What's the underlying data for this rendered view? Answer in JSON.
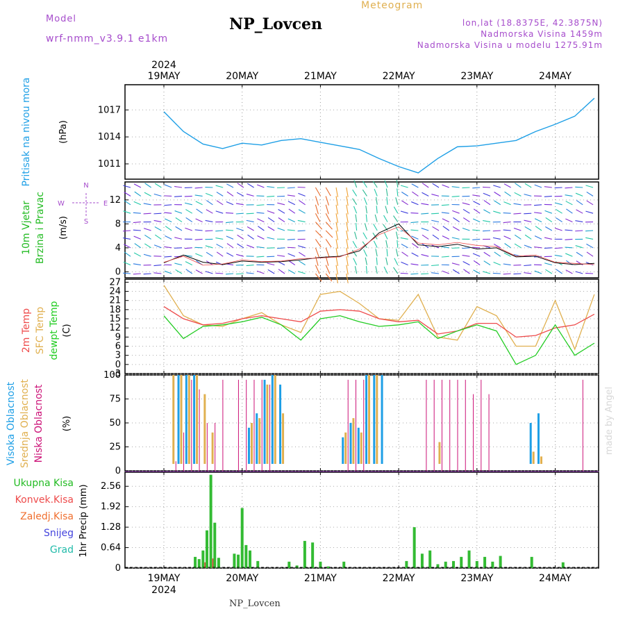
{
  "header": {
    "title": "NP_Lovcen",
    "model_label": "Model",
    "model_value": "wrf-nmm_v3.9.1 e1km",
    "meteogram": "Meteogram",
    "lonlat": "lon,lat (18.8375E, 42.3875N)",
    "elevation": "Nadmorska Visina 1459m",
    "model_elevation": "Nadmorska Visina u modelu 1275.91m",
    "footer": "NP_Lovcen",
    "credit": "made by Angel"
  },
  "colors": {
    "pressure": "#1e9fe6",
    "temp2m": "#ee4b4b",
    "sfc": "#e0b050",
    "dewpt": "#22cc22",
    "purple": "#a64ccc",
    "pink": "#cc1177"
  },
  "chart_data": [
    {
      "type": "line",
      "panel": "pressure",
      "title": "",
      "ylabel": "Pritisak na nivou mora",
      "unit": "(hPa)",
      "yticks": [
        1011,
        1014,
        1017
      ],
      "ylim": [
        1009.3,
        1019.8
      ],
      "x_ticks": [
        "19MAY",
        "20MAY",
        "21MAY",
        "22MAY",
        "23MAY",
        "24MAY"
      ],
      "x_top_year": "2024",
      "x": [
        0,
        0.25,
        0.5,
        0.75,
        1.0,
        1.25,
        1.5,
        1.75,
        2.0,
        2.25,
        2.5,
        2.75,
        3.0,
        3.25,
        3.5,
        3.75,
        4.0,
        4.25,
        4.5,
        4.75,
        5.0,
        5.25,
        5.5
      ],
      "series": [
        {
          "values": [
            1016.8,
            1014.6,
            1013.2,
            1012.7,
            1013.3,
            1013.1,
            1013.6,
            1013.8,
            1013.4,
            1013.0,
            1012.6,
            1011.6,
            1010.7,
            1010.0,
            1011.6,
            1012.9,
            1013.0,
            1013.3,
            1013.6,
            1014.6,
            1015.4,
            1016.3,
            1018.3
          ]
        }
      ]
    },
    {
      "type": "line",
      "panel": "wind",
      "ylabel": [
        "10m Vjetar",
        "Brzina i Pravac"
      ],
      "unit": "(m/s)",
      "yticks": [
        0,
        4,
        8,
        12
      ],
      "ylim": [
        -1,
        15
      ],
      "compass": [
        "N",
        "E",
        "S",
        "W"
      ],
      "x": [
        0,
        0.25,
        0.5,
        0.75,
        1.0,
        1.25,
        1.5,
        1.75,
        2.0,
        2.25,
        2.5,
        2.75,
        3.0,
        3.25,
        3.5,
        3.75,
        4.0,
        4.25,
        4.5,
        4.75,
        5.0,
        5.25,
        5.5
      ],
      "series": [
        {
          "name": "speed",
          "values": [
            1.5,
            2.8,
            1.6,
            1.2,
            1.8,
            1.6,
            1.7,
            2.0,
            2.4,
            2.6,
            3.5,
            6.5,
            8.0,
            4.5,
            4.2,
            4.6,
            3.8,
            4.0,
            2.5,
            2.6,
            1.5,
            1.2,
            1.4
          ]
        },
        {
          "name": "gust",
          "values": [
            1.6,
            2.6,
            1.1,
            1.3,
            2.0,
            1.7,
            1.8,
            2.2,
            2.3,
            2.5,
            3.8,
            6.2,
            7.5,
            4.8,
            4.5,
            4.9,
            4.4,
            4.2,
            2.6,
            2.8,
            1.6,
            1.4,
            1.2
          ]
        }
      ]
    },
    {
      "type": "line",
      "panel": "temperature",
      "legend": [
        "2m Temp",
        "SFC Temp",
        "dewpt Temp"
      ],
      "unit": "(C)",
      "yticks": [
        -3,
        0,
        3,
        6,
        9,
        12,
        15,
        18,
        21,
        24,
        27
      ],
      "ylim": [
        -3,
        28
      ],
      "x": [
        0,
        0.25,
        0.5,
        0.75,
        1.0,
        1.25,
        1.5,
        1.75,
        2.0,
        2.25,
        2.5,
        2.75,
        3.0,
        3.25,
        3.5,
        3.75,
        4.0,
        4.25,
        4.5,
        4.75,
        5.0,
        5.25,
        5.5
      ],
      "series": [
        {
          "name": "2m Temp",
          "values": [
            19,
            15,
            13,
            13.5,
            15,
            16,
            15,
            14,
            17.5,
            18,
            17.5,
            15,
            14,
            14.5,
            10,
            11,
            13.5,
            13.5,
            9,
            9.5,
            12,
            13,
            16.5
          ]
        },
        {
          "name": "SFC Temp",
          "values": [
            26,
            16,
            13,
            12.5,
            15,
            17,
            13,
            10.5,
            23,
            24,
            20,
            15,
            14.5,
            23,
            9,
            8,
            19,
            16,
            6,
            6,
            21,
            5,
            23
          ]
        },
        {
          "name": "dewpt Temp",
          "values": [
            16,
            8.5,
            12.5,
            13,
            14,
            15.5,
            13,
            8,
            15,
            16,
            14,
            12.5,
            13,
            14,
            8.5,
            11,
            13,
            11,
            0,
            3,
            13,
            3,
            7
          ]
        }
      ]
    },
    {
      "type": "bar",
      "panel": "cloud",
      "legend": [
        "Visoka Oblacnost",
        "Srednja Oblacnost",
        "Niska Oblacnost"
      ],
      "unit": "(%)",
      "yticks": [
        0,
        25,
        50,
        75,
        100
      ],
      "ylim": [
        0,
        100
      ],
      "x": [
        0.1,
        0.2,
        0.3,
        0.4,
        0.5,
        0.6,
        0.7,
        0.8,
        0.9,
        1.0,
        1.1,
        1.2,
        1.3,
        1.4,
        1.5,
        1.6,
        1.7,
        1.8,
        1.9,
        2.0,
        2.3,
        2.4,
        2.5,
        2.6,
        2.7,
        2.8,
        3.3,
        3.4,
        3.5,
        3.6,
        3.7,
        3.8,
        3.9,
        4.0,
        4.1,
        4.2,
        4.3,
        4.6,
        4.7,
        4.8,
        5.2,
        5.3,
        5.4
      ],
      "series": [
        {
          "name": "Visoka Oblacnost",
          "values": [
            0,
            100,
            100,
            100,
            0,
            0,
            0,
            0,
            0,
            0,
            45,
            60,
            95,
            100,
            90,
            0,
            0,
            0,
            0,
            0,
            35,
            50,
            45,
            100,
            100,
            100,
            0,
            0,
            0,
            0,
            0,
            0,
            0,
            0,
            0,
            0,
            0,
            0,
            50,
            60,
            0,
            0,
            0
          ]
        },
        {
          "name": "Srednja Oblacnost",
          "values": [
            100,
            100,
            100,
            100,
            80,
            40,
            5,
            0,
            0,
            0,
            50,
            55,
            90,
            100,
            60,
            0,
            0,
            0,
            0,
            0,
            40,
            55,
            40,
            100,
            100,
            5,
            0,
            0,
            30,
            0,
            0,
            0,
            0,
            0,
            0,
            0,
            0,
            0,
            20,
            15,
            5,
            0,
            0
          ]
        },
        {
          "name": "Niska Oblacnost",
          "values": [
            0,
            0,
            0,
            0,
            0,
            0,
            0,
            0,
            0,
            0,
            0,
            0,
            0,
            0,
            0,
            0,
            0,
            0,
            0,
            0,
            0,
            0,
            0,
            0,
            0,
            0,
            0,
            0,
            0,
            0,
            0,
            0,
            0,
            0,
            0,
            0,
            0,
            0,
            0,
            0,
            0,
            0,
            0
          ]
        },
        {
          "name": "Oblacnost lines",
          "values": [
            10,
            40,
            95,
            85,
            50,
            50,
            95,
            0,
            95,
            95,
            95,
            95,
            90,
            0,
            0,
            0,
            0,
            0,
            0,
            0,
            95,
            95,
            95,
            0,
            0,
            0,
            95,
            95,
            95,
            95,
            95,
            95,
            80,
            95,
            80,
            0,
            0,
            0,
            0,
            0,
            0,
            95,
            0
          ]
        }
      ]
    },
    {
      "type": "bar",
      "panel": "precip",
      "legend": [
        "Ukupna Kisa",
        "Konvek.Kisa",
        "Zaledj.Kisa",
        "Snijeg",
        "Grad"
      ],
      "unit": "1hr Precip (mm)",
      "yticks": [
        0,
        0.64,
        1.28,
        1.92,
        2.56
      ],
      "ylim": [
        0,
        3.0
      ],
      "x": [
        0.4,
        0.45,
        0.5,
        0.55,
        0.6,
        0.65,
        0.7,
        0.75,
        0.9,
        0.95,
        1.0,
        1.05,
        1.1,
        1.15,
        1.2,
        1.6,
        1.7,
        1.8,
        1.9,
        2.0,
        2.1,
        2.3,
        3.1,
        3.2,
        3.3,
        3.4,
        3.5,
        3.6,
        3.7,
        3.8,
        3.9,
        4.0,
        4.1,
        4.2,
        4.3,
        4.7,
        5.1
      ],
      "series": [
        {
          "name": "Ukupna Kisa",
          "values": [
            0.35,
            0.28,
            0.55,
            1.18,
            2.92,
            1.42,
            0.32,
            0.0,
            0.45,
            0.42,
            1.88,
            0.72,
            0.55,
            0.0,
            0.22,
            0.2,
            0.08,
            0.85,
            0.8,
            0.2,
            0.05,
            0.2,
            0.22,
            1.28,
            0.45,
            0.55,
            0.12,
            0.2,
            0.22,
            0.35,
            0.55,
            0.22,
            0.35,
            0.2,
            0.38,
            0.35,
            0.18
          ]
        },
        {
          "name": "Konvek.Kisa",
          "values": [
            0.0,
            0.0,
            0.18,
            0.0,
            0.3,
            0.0,
            0.0,
            0.0,
            0.0,
            0.0,
            0.0,
            0.0,
            0.0,
            0.0,
            0.0,
            0.0,
            0.0,
            0.0,
            0.0,
            0.0,
            0.0,
            0.0,
            0.0,
            0.0,
            0.0,
            0.0,
            0.0,
            0.0,
            0.0,
            0.0,
            0.0,
            0.0,
            0.0,
            0.0,
            0.0,
            0.0,
            0.0
          ]
        }
      ]
    }
  ]
}
